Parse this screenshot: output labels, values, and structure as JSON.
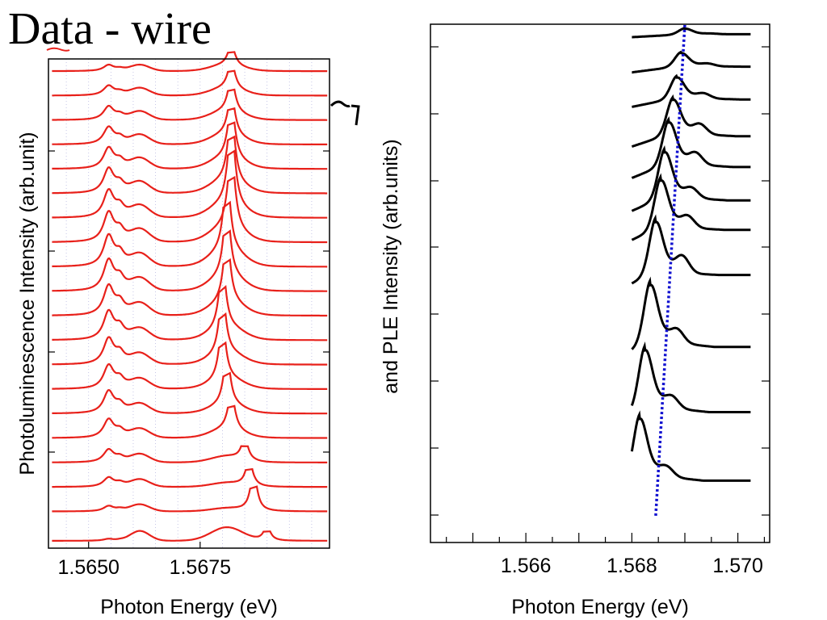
{
  "slide": {
    "title": "Data - wire"
  },
  "chart_data": [
    {
      "type": "line",
      "title": "",
      "xlabel": "Photon Energy (eV)",
      "ylabel": "Photoluminescence Intensity (arb.unit)",
      "xlim": [
        1.5641,
        1.5704
      ],
      "ylim": [
        0,
        20
      ],
      "x_tick_labels": [
        "1.5650",
        "1.5675"
      ],
      "x_ticks": [
        1.565,
        1.5675
      ],
      "color": "#e8201a",
      "grid": "vertical dotted",
      "legend": "none",
      "series": [
        {
          "offset": 0.3,
          "main_peak": 1.569,
          "main_height": 0.6,
          "wing_height": 0.55,
          "side1": 0.08,
          "side2": 0.05,
          "broad": 0.4
        },
        {
          "offset": 1.5,
          "main_peak": 1.5687,
          "main_height": 1.6,
          "wing_height": 0.12,
          "side1": 0.22,
          "side2": 0.15,
          "broad": 0.28
        },
        {
          "offset": 2.5,
          "main_peak": 1.5686,
          "main_height": 1.1,
          "wing_height": 0.16,
          "side1": 0.38,
          "side2": 0.25,
          "broad": 0.3
        },
        {
          "offset": 3.5,
          "main_peak": 1.5685,
          "main_height": 0.9,
          "wing_height": 0.25,
          "side1": 0.52,
          "side2": 0.32,
          "broad": 0.33
        },
        {
          "offset": 4.5,
          "main_peak": 1.5682,
          "main_height": 1.6,
          "wing_height": 0.35,
          "side1": 0.75,
          "side2": 0.45,
          "broad": 0.36
        },
        {
          "offset": 5.5,
          "main_peak": 1.5681,
          "main_height": 2.1,
          "wing_height": 0.35,
          "side1": 0.9,
          "side2": 0.55,
          "broad": 0.38
        },
        {
          "offset": 6.5,
          "main_peak": 1.568,
          "main_height": 2.4,
          "wing_height": 0.4,
          "side1": 0.95,
          "side2": 0.62,
          "broad": 0.4
        },
        {
          "offset": 7.5,
          "main_peak": 1.568,
          "main_height": 2.6,
          "wing_height": 0.45,
          "side1": 1.05,
          "side2": 0.7,
          "broad": 0.43
        },
        {
          "offset": 8.5,
          "main_peak": 1.568,
          "main_height": 2.7,
          "wing_height": 0.5,
          "side1": 1.15,
          "side2": 0.78,
          "broad": 0.45
        },
        {
          "offset": 9.5,
          "main_peak": 1.5681,
          "main_height": 2.8,
          "wing_height": 0.55,
          "side1": 1.2,
          "side2": 0.8,
          "broad": 0.48
        },
        {
          "offset": 10.5,
          "main_peak": 1.5681,
          "main_height": 3.0,
          "wing_height": 0.6,
          "side1": 1.25,
          "side2": 0.82,
          "broad": 0.5
        },
        {
          "offset": 11.5,
          "main_peak": 1.5681,
          "main_height": 3.2,
          "wing_height": 0.65,
          "side1": 1.25,
          "side2": 0.8,
          "broad": 0.5
        },
        {
          "offset": 12.5,
          "main_peak": 1.5682,
          "main_height": 3.4,
          "wing_height": 0.6,
          "side1": 1.2,
          "side2": 0.75,
          "broad": 0.5
        },
        {
          "offset": 13.5,
          "main_peak": 1.5682,
          "main_height": 3.6,
          "wing_height": 0.55,
          "side1": 1.1,
          "side2": 0.7,
          "broad": 0.48
        },
        {
          "offset": 14.5,
          "main_peak": 1.5682,
          "main_height": 3.0,
          "wing_height": 0.5,
          "side1": 1.0,
          "side2": 0.6,
          "broad": 0.45
        },
        {
          "offset": 15.5,
          "main_peak": 1.5682,
          "main_height": 2.4,
          "wing_height": 0.45,
          "side1": 0.85,
          "side2": 0.5,
          "broad": 0.42
        },
        {
          "offset": 16.5,
          "main_peak": 1.5682,
          "main_height": 1.8,
          "wing_height": 0.4,
          "side1": 0.7,
          "side2": 0.4,
          "broad": 0.38
        },
        {
          "offset": 17.5,
          "main_peak": 1.5682,
          "main_height": 1.5,
          "wing_height": 0.35,
          "side1": 0.55,
          "side2": 0.3,
          "broad": 0.34
        },
        {
          "offset": 18.5,
          "main_peak": 1.5682,
          "main_height": 1.2,
          "wing_height": 0.3,
          "side1": 0.4,
          "side2": 0.22,
          "broad": 0.3
        },
        {
          "offset": 19.5,
          "main_peak": 1.5682,
          "main_height": 0.9,
          "wing_height": 0.25,
          "side1": 0.25,
          "side2": 0.15,
          "broad": 0.25
        }
      ]
    },
    {
      "type": "line",
      "title": "",
      "xlabel": "Photon Energy (eV)",
      "ylabel": "and PLE Intensity (arb.units)",
      "xlim": [
        1.5642,
        1.5706
      ],
      "ylim": [
        0,
        15.5
      ],
      "x_tick_labels": [
        "1.566",
        "1.568",
        "1.570"
      ],
      "x_ticks": [
        1.566,
        1.568,
        1.57
      ],
      "color": "#000000",
      "guide_line": {
        "color": "#1010d0",
        "style": "dotted",
        "x_start": 1.56845,
        "x_end": 1.569
      },
      "legend": "none",
      "series": [
        {
          "offset": 15.2,
          "peak": 1.569,
          "height": 0.15,
          "bump": 0.02,
          "baseline_drop": 0.0
        },
        {
          "offset": 14.25,
          "peak": 1.56893,
          "height": 0.35,
          "bump": 0.08,
          "baseline_drop": 0.02
        },
        {
          "offset": 13.3,
          "peak": 1.56885,
          "height": 0.55,
          "bump": 0.15,
          "baseline_drop": 0.05
        },
        {
          "offset": 12.25,
          "peak": 1.56878,
          "height": 0.9,
          "bump": 0.3,
          "baseline_drop": 0.1
        },
        {
          "offset": 11.35,
          "peak": 1.5687,
          "height": 1.1,
          "bump": 0.35,
          "baseline_drop": 0.12
        },
        {
          "offset": 10.35,
          "peak": 1.56862,
          "height": 1.2,
          "bump": 0.3,
          "baseline_drop": 0.12
        },
        {
          "offset": 9.45,
          "peak": 1.56855,
          "height": 1.25,
          "bump": 0.35,
          "baseline_drop": 0.1
        },
        {
          "offset": 8.1,
          "peak": 1.56845,
          "height": 1.35,
          "bump": 0.5,
          "baseline_drop": 0.1
        },
        {
          "offset": 6.05,
          "peak": 1.56835,
          "height": 1.5,
          "bump": 0.4,
          "baseline_drop": 0.2
        },
        {
          "offset": 4.1,
          "peak": 1.56825,
          "height": 1.5,
          "bump": 0.35,
          "baseline_drop": 0.2
        },
        {
          "offset": 2.05,
          "peak": 1.56815,
          "height": 1.5,
          "bump": 0.3,
          "baseline_drop": 0.2
        }
      ]
    }
  ]
}
